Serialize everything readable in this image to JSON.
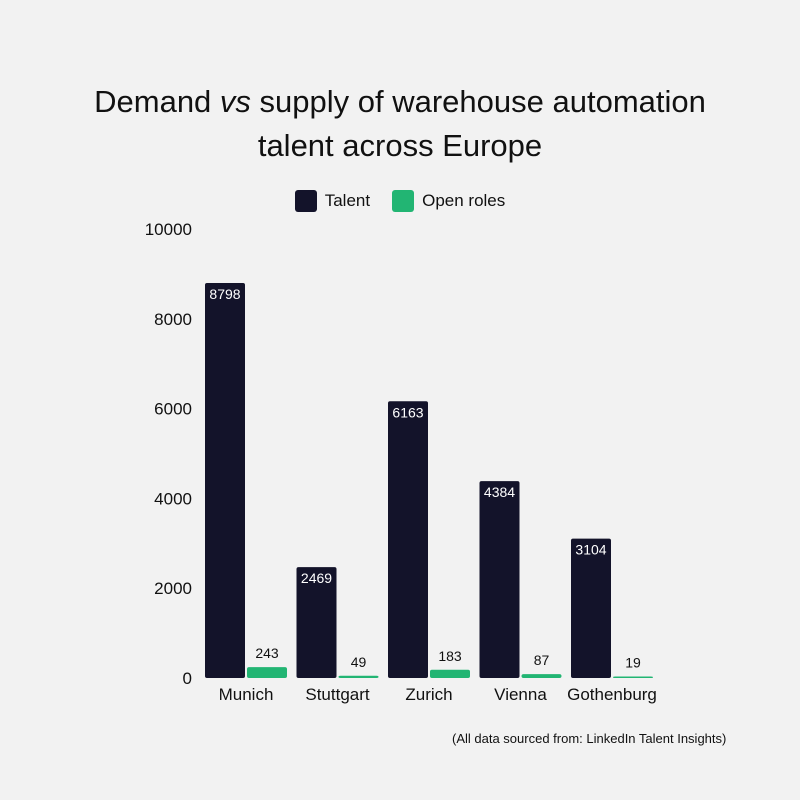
{
  "chart_data": {
    "type": "bar",
    "title": {
      "prefix": "Demand ",
      "emphasis": "vs",
      "suffix": " supply of warehouse automation",
      "line2": "talent across Europe"
    },
    "categories": [
      "Munich",
      "Stuttgart",
      "Zurich",
      "Vienna",
      "Gothenburg"
    ],
    "series": [
      {
        "name": "Talent",
        "color": "#13132a",
        "values": [
          8798,
          2469,
          6163,
          4384,
          3104
        ]
      },
      {
        "name": "Open roles",
        "color": "#22b573",
        "values": [
          243,
          49,
          183,
          87,
          19
        ]
      }
    ],
    "y_ticks": [
      0,
      2000,
      4000,
      6000,
      8000,
      10000
    ],
    "ylim": [
      0,
      10000
    ],
    "legend_position": "top-center",
    "grid": false,
    "source": "(All data sourced from: LinkedIn Talent Insights)"
  }
}
